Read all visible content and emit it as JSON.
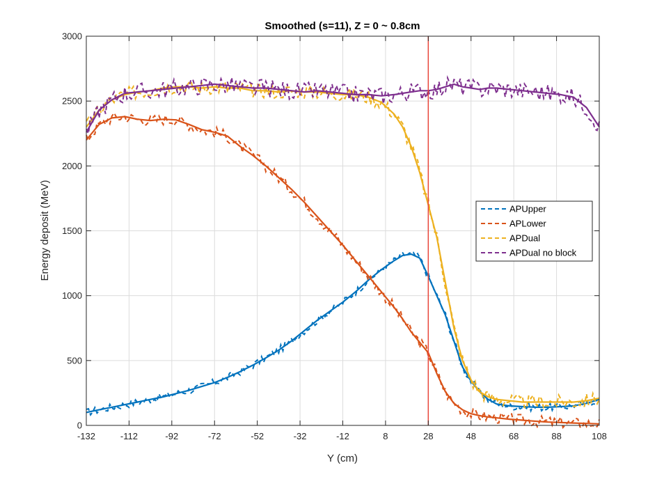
{
  "chart_data": {
    "type": "line",
    "title": "Smoothed (s=11), Z = 0 ~ 0.8cm",
    "xlabel": "Y (cm)",
    "ylabel": "Energy deposit (MeV)",
    "xlim": [
      -132,
      108
    ],
    "ylim": [
      0,
      3000
    ],
    "xticks": [
      -132,
      -112,
      -92,
      -72,
      -52,
      -32,
      -12,
      8,
      28,
      48,
      68,
      88,
      108
    ],
    "yticks": [
      0,
      500,
      1000,
      1500,
      2000,
      2500,
      3000
    ],
    "grid": true,
    "legend_position": "right",
    "vertical_marker": {
      "x": 28,
      "color": "#e8463a"
    },
    "x": [
      -132,
      -126,
      -120,
      -114,
      -108,
      -102,
      -96,
      -90,
      -84,
      -78,
      -72,
      -66,
      -60,
      -54,
      -48,
      -42,
      -36,
      -30,
      -24,
      -18,
      -12,
      -6,
      0,
      6,
      12,
      16,
      20,
      24,
      28,
      32,
      36,
      40,
      44,
      48,
      52,
      56,
      60,
      66,
      72,
      78,
      84,
      90,
      96,
      102,
      108
    ],
    "series": [
      {
        "name": "APUpper",
        "color": "#0072bd",
        "values": [
          100,
          120,
          140,
          160,
          180,
          200,
          220,
          245,
          270,
          300,
          330,
          370,
          415,
          465,
          520,
          580,
          650,
          730,
          810,
          880,
          950,
          1030,
          1120,
          1200,
          1270,
          1310,
          1320,
          1290,
          1150,
          1000,
          850,
          650,
          450,
          340,
          260,
          200,
          165,
          150,
          145,
          140,
          140,
          145,
          150,
          170,
          200
        ]
      },
      {
        "name": "APLower",
        "color": "#d95319",
        "values": [
          2200,
          2320,
          2370,
          2380,
          2360,
          2350,
          2360,
          2355,
          2320,
          2280,
          2260,
          2230,
          2150,
          2080,
          2000,
          1910,
          1820,
          1720,
          1610,
          1500,
          1390,
          1270,
          1150,
          1030,
          910,
          820,
          720,
          640,
          560,
          400,
          260,
          170,
          120,
          90,
          75,
          65,
          58,
          48,
          40,
          32,
          26,
          22,
          18,
          15,
          12
        ]
      },
      {
        "name": "APDual",
        "color": "#edb120",
        "values": [
          2300,
          2430,
          2510,
          2550,
          2570,
          2580,
          2600,
          2610,
          2610,
          2600,
          2610,
          2600,
          2600,
          2580,
          2580,
          2570,
          2580,
          2570,
          2570,
          2560,
          2550,
          2550,
          2530,
          2490,
          2400,
          2300,
          2150,
          1950,
          1700,
          1450,
          1100,
          750,
          500,
          350,
          260,
          220,
          200,
          190,
          180,
          180,
          180,
          180,
          180,
          190,
          210
        ]
      },
      {
        "name": "APDual no block",
        "color": "#7e2f8e",
        "values": [
          2260,
          2430,
          2510,
          2560,
          2570,
          2580,
          2590,
          2600,
          2610,
          2620,
          2630,
          2620,
          2610,
          2600,
          2600,
          2590,
          2580,
          2570,
          2580,
          2570,
          2560,
          2550,
          2550,
          2540,
          2550,
          2560,
          2570,
          2580,
          2580,
          2590,
          2610,
          2630,
          2610,
          2600,
          2590,
          2600,
          2600,
          2590,
          2580,
          2570,
          2560,
          2550,
          2530,
          2450,
          2300
        ]
      }
    ]
  }
}
